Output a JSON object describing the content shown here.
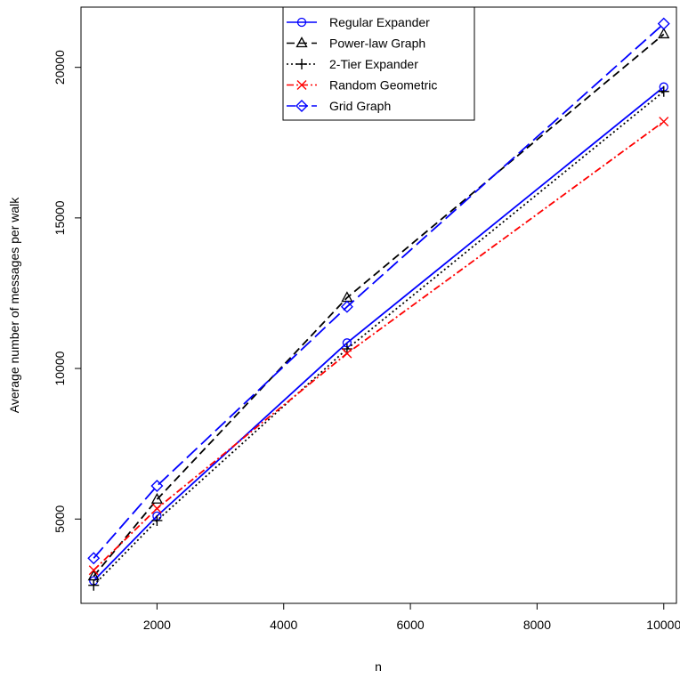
{
  "chart_data": {
    "type": "line",
    "title": "",
    "xlabel": "n",
    "ylabel": "Average number of messages per walk",
    "xlim": [
      800,
      10200
    ],
    "ylim": [
      2200,
      22000
    ],
    "x_ticks": [
      2000,
      4000,
      6000,
      8000,
      10000
    ],
    "y_ticks": [
      5000,
      10000,
      15000,
      20000
    ],
    "x_tick_labels": [
      "2000",
      "4000",
      "6000",
      "8000",
      "10000"
    ],
    "y_tick_labels": [
      "5000",
      "10000",
      "15000",
      "20000"
    ],
    "grid": false,
    "legend_position": "top-center",
    "x": [
      1000,
      2000,
      5000,
      10000
    ],
    "series": [
      {
        "name": "Regular Expander",
        "values": [
          2950,
          5100,
          10850,
          19350
        ],
        "color": "#0000FF",
        "marker": "circle",
        "dash": ""
      },
      {
        "name": "Power-law Graph",
        "values": [
          3100,
          5650,
          12350,
          21100
        ],
        "color": "#000000",
        "marker": "triangle",
        "dash": "9,5"
      },
      {
        "name": "2-Tier Expander",
        "values": [
          2800,
          4950,
          10650,
          19200
        ],
        "color": "#000000",
        "marker": "plus",
        "dash": "2,3"
      },
      {
        "name": "Random Geometric",
        "values": [
          3300,
          5350,
          10500,
          18200
        ],
        "color": "#FF0000",
        "marker": "x",
        "dash": "8,3,2,3"
      },
      {
        "name": "Grid Graph",
        "values": [
          3700,
          6100,
          12050,
          21450
        ],
        "color": "#0000FF",
        "marker": "diamond",
        "dash": "16,6"
      }
    ]
  }
}
